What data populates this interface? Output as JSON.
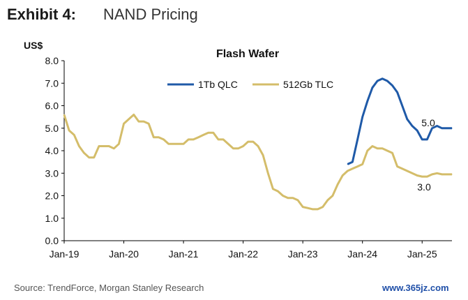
{
  "header": {
    "exhibit": "Exhibit 4:",
    "title": "NAND Pricing"
  },
  "footer": {
    "source": "Source: TrendForce, Morgan Stanley Research",
    "watermark": "www.365jz.com"
  },
  "colors": {
    "qlc": "#1f5aa8",
    "tlc": "#d4bd6a",
    "axis": "#000000",
    "text": "#111111"
  },
  "chart_data": {
    "type": "line",
    "title": "Flash Wafer",
    "ylabel": "US$",
    "xlabel": "",
    "ylim": [
      0,
      8
    ],
    "yticks": [
      "0.0",
      "1.0",
      "2.0",
      "3.0",
      "4.0",
      "5.0",
      "6.0",
      "7.0",
      "8.0"
    ],
    "xlim": [
      "2019-01",
      "2025-07"
    ],
    "xticks": [
      "Jan-19",
      "Jan-20",
      "Jan-21",
      "Jan-22",
      "Jan-23",
      "Jan-24",
      "Jan-25"
    ],
    "grid": false,
    "legend_position": "top",
    "series": [
      {
        "name": "1Tb QLC",
        "color": "#1f5aa8",
        "end_label": "5.0",
        "points": [
          [
            "2023-10",
            3.4
          ],
          [
            "2023-11",
            3.5
          ],
          [
            "2023-12",
            4.5
          ],
          [
            "2024-01",
            5.5
          ],
          [
            "2024-02",
            6.2
          ],
          [
            "2024-03",
            6.8
          ],
          [
            "2024-04",
            7.1
          ],
          [
            "2024-05",
            7.2
          ],
          [
            "2024-06",
            7.1
          ],
          [
            "2024-07",
            6.9
          ],
          [
            "2024-08",
            6.6
          ],
          [
            "2024-09",
            6.0
          ],
          [
            "2024-10",
            5.4
          ],
          [
            "2024-11",
            5.1
          ],
          [
            "2024-12",
            4.9
          ],
          [
            "2025-01",
            4.5
          ],
          [
            "2025-02",
            4.5
          ],
          [
            "2025-03",
            5.0
          ],
          [
            "2025-04",
            5.1
          ],
          [
            "2025-05",
            5.0
          ],
          [
            "2025-06",
            5.0
          ],
          [
            "2025-07",
            5.0
          ]
        ]
      },
      {
        "name": "512Gb TLC",
        "color": "#d4bd6a",
        "end_label": "3.0",
        "points": [
          [
            "2019-01",
            5.6
          ],
          [
            "2019-02",
            4.9
          ],
          [
            "2019-03",
            4.7
          ],
          [
            "2019-04",
            4.2
          ],
          [
            "2019-05",
            3.9
          ],
          [
            "2019-06",
            3.7
          ],
          [
            "2019-07",
            3.7
          ],
          [
            "2019-08",
            4.2
          ],
          [
            "2019-09",
            4.2
          ],
          [
            "2019-10",
            4.2
          ],
          [
            "2019-11",
            4.1
          ],
          [
            "2019-12",
            4.3
          ],
          [
            "2020-01",
            5.2
          ],
          [
            "2020-02",
            5.4
          ],
          [
            "2020-03",
            5.6
          ],
          [
            "2020-04",
            5.3
          ],
          [
            "2020-05",
            5.3
          ],
          [
            "2020-06",
            5.2
          ],
          [
            "2020-07",
            4.6
          ],
          [
            "2020-08",
            4.6
          ],
          [
            "2020-09",
            4.5
          ],
          [
            "2020-10",
            4.3
          ],
          [
            "2020-11",
            4.3
          ],
          [
            "2020-12",
            4.3
          ],
          [
            "2021-01",
            4.3
          ],
          [
            "2021-02",
            4.5
          ],
          [
            "2021-03",
            4.5
          ],
          [
            "2021-04",
            4.6
          ],
          [
            "2021-05",
            4.7
          ],
          [
            "2021-06",
            4.8
          ],
          [
            "2021-07",
            4.8
          ],
          [
            "2021-08",
            4.5
          ],
          [
            "2021-09",
            4.5
          ],
          [
            "2021-10",
            4.3
          ],
          [
            "2021-11",
            4.1
          ],
          [
            "2021-12",
            4.1
          ],
          [
            "2022-01",
            4.2
          ],
          [
            "2022-02",
            4.4
          ],
          [
            "2022-03",
            4.4
          ],
          [
            "2022-04",
            4.2
          ],
          [
            "2022-05",
            3.8
          ],
          [
            "2022-06",
            3.0
          ],
          [
            "2022-07",
            2.3
          ],
          [
            "2022-08",
            2.2
          ],
          [
            "2022-09",
            2.0
          ],
          [
            "2022-10",
            1.9
          ],
          [
            "2022-11",
            1.9
          ],
          [
            "2022-12",
            1.8
          ],
          [
            "2023-01",
            1.5
          ],
          [
            "2023-02",
            1.45
          ],
          [
            "2023-03",
            1.4
          ],
          [
            "2023-04",
            1.4
          ],
          [
            "2023-05",
            1.5
          ],
          [
            "2023-06",
            1.8
          ],
          [
            "2023-07",
            2.0
          ],
          [
            "2023-08",
            2.5
          ],
          [
            "2023-09",
            2.9
          ],
          [
            "2023-10",
            3.1
          ],
          [
            "2023-11",
            3.2
          ],
          [
            "2023-12",
            3.3
          ],
          [
            "2024-01",
            3.4
          ],
          [
            "2024-02",
            4.0
          ],
          [
            "2024-03",
            4.2
          ],
          [
            "2024-04",
            4.1
          ],
          [
            "2024-05",
            4.1
          ],
          [
            "2024-06",
            4.0
          ],
          [
            "2024-07",
            3.9
          ],
          [
            "2024-08",
            3.3
          ],
          [
            "2024-09",
            3.2
          ],
          [
            "2024-10",
            3.1
          ],
          [
            "2024-11",
            3.0
          ],
          [
            "2024-12",
            2.9
          ],
          [
            "2025-01",
            2.85
          ],
          [
            "2025-02",
            2.85
          ],
          [
            "2025-03",
            2.95
          ],
          [
            "2025-04",
            3.0
          ],
          [
            "2025-05",
            2.95
          ],
          [
            "2025-06",
            2.95
          ],
          [
            "2025-07",
            2.95
          ]
        ]
      }
    ]
  }
}
